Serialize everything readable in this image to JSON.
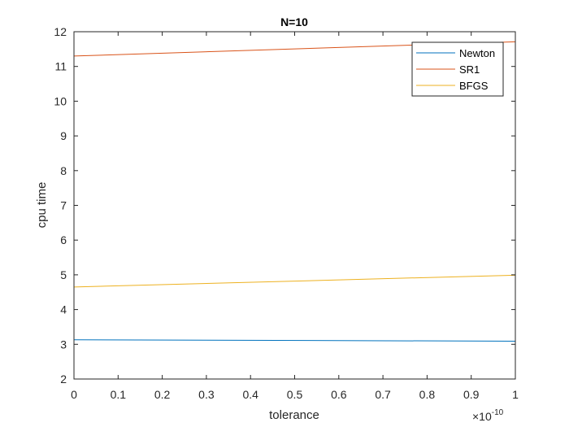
{
  "chart_data": {
    "type": "line",
    "title": "N=10",
    "xlabel": "tolerance",
    "ylabel": "cpu time",
    "x_exponent_base": "×10",
    "x_exponent_power": "-10",
    "xlim": [
      0,
      1
    ],
    "ylim": [
      2,
      12
    ],
    "x_ticks": [
      "0",
      "0.1",
      "0.2",
      "0.3",
      "0.4",
      "0.5",
      "0.6",
      "0.7",
      "0.8",
      "0.9",
      "1"
    ],
    "x_tick_values": [
      0,
      0.1,
      0.2,
      0.3,
      0.4,
      0.5,
      0.6,
      0.7,
      0.8,
      0.9,
      1
    ],
    "y_ticks": [
      "2",
      "3",
      "4",
      "5",
      "6",
      "7",
      "8",
      "9",
      "10",
      "11",
      "12"
    ],
    "y_tick_values": [
      2,
      3,
      4,
      5,
      6,
      7,
      8,
      9,
      10,
      11,
      12
    ],
    "grid": false,
    "legend_position": "top-right",
    "series": [
      {
        "name": "Newton",
        "color": "#0072BD",
        "x": [
          0,
          1
        ],
        "y": [
          3.13,
          3.09
        ]
      },
      {
        "name": "SR1",
        "color": "#D95319",
        "x": [
          0,
          1
        ],
        "y": [
          11.3,
          11.71
        ]
      },
      {
        "name": "BFGS",
        "color": "#EDB120",
        "x": [
          0,
          1
        ],
        "y": [
          4.65,
          4.99
        ]
      }
    ]
  }
}
